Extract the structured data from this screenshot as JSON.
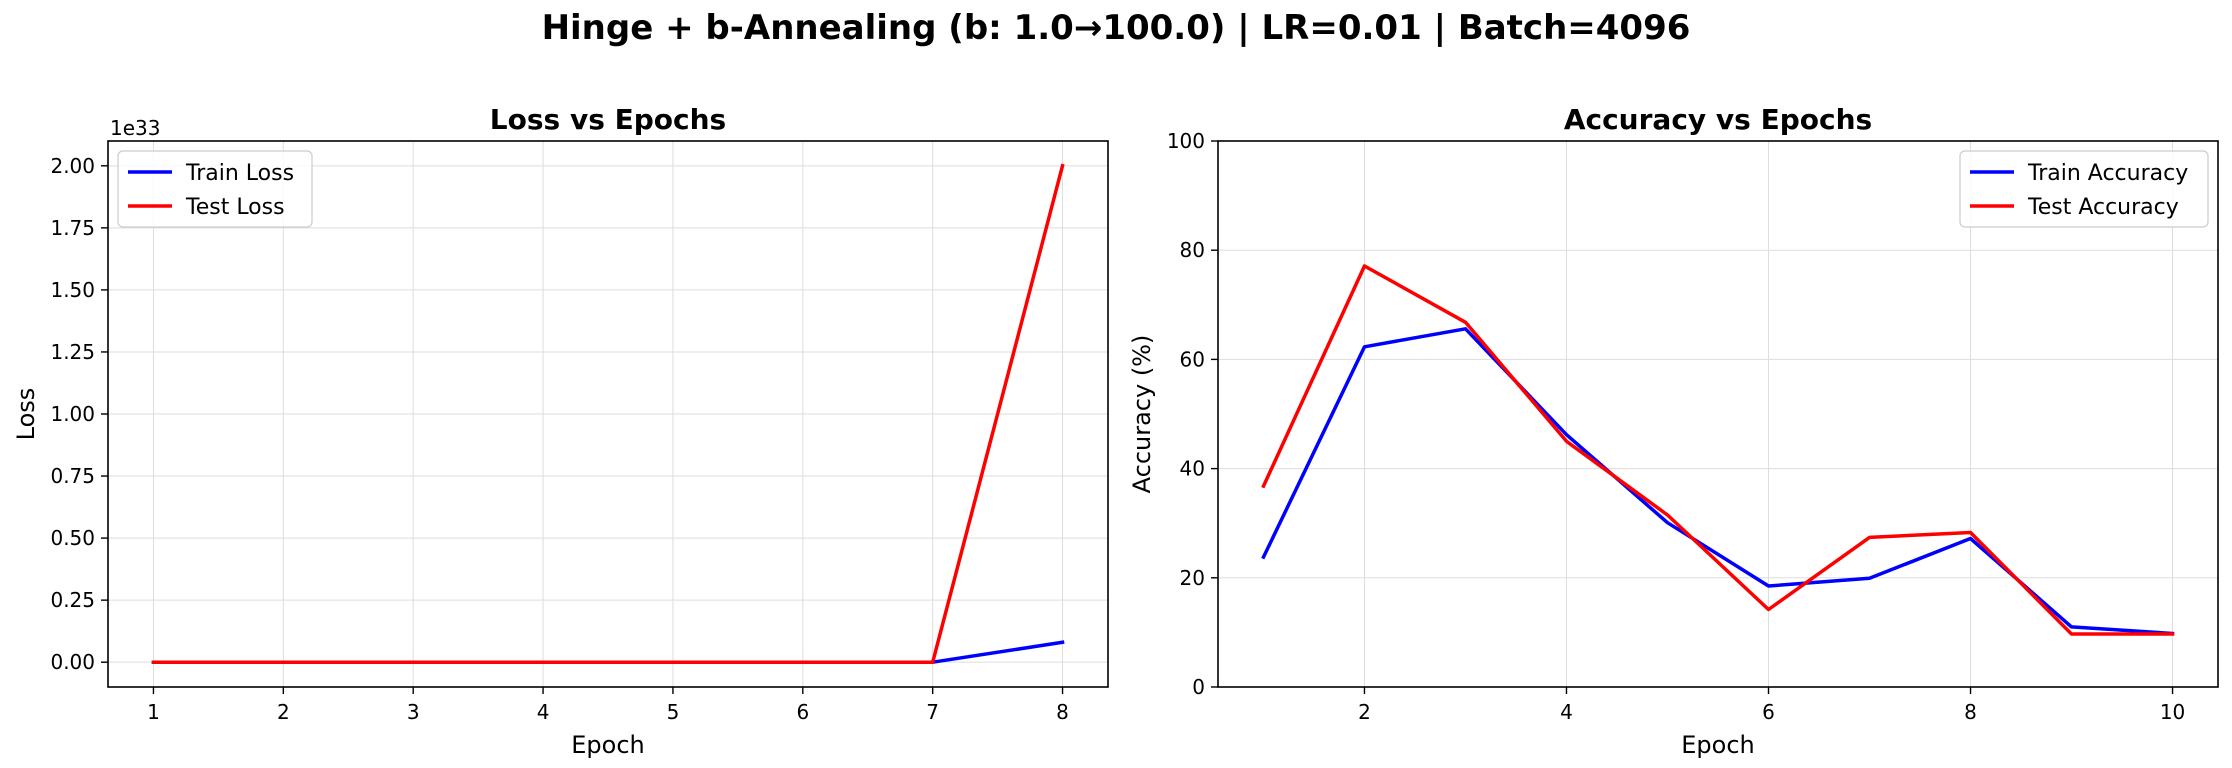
{
  "figure": {
    "title": "Hinge + b-Annealing (b: 1.0→100.0) | LR=0.01 | Batch=4096"
  },
  "colors": {
    "train": "#0000ff",
    "test": "#ff0000",
    "grid": "#dddddd",
    "axes": "#000000"
  },
  "chart_data": [
    {
      "type": "line",
      "title": "Loss vs Epochs",
      "xlabel": "Epoch",
      "ylabel": "Loss",
      "offset_text": "1e33",
      "x": [
        1,
        2,
        3,
        4,
        5,
        6,
        7,
        8
      ],
      "xlim": [
        0.65,
        8.35
      ],
      "ylim": [
        -0.1,
        2.1
      ],
      "xticks": [
        1,
        2,
        3,
        4,
        5,
        6,
        7,
        8
      ],
      "yticks": [
        0.0,
        0.25,
        0.5,
        0.75,
        1.0,
        1.25,
        1.5,
        1.75,
        2.0
      ],
      "ytick_labels": [
        "0.00",
        "0.25",
        "0.50",
        "0.75",
        "1.00",
        "1.25",
        "1.50",
        "1.75",
        "2.00"
      ],
      "grid": true,
      "legend_position": "upper left",
      "series": [
        {
          "name": "Train Loss",
          "color": "#0000ff",
          "values": [
            0,
            0,
            0,
            0,
            0,
            0,
            0,
            0.08
          ]
        },
        {
          "name": "Test Loss",
          "color": "#ff0000",
          "values": [
            0,
            0,
            0,
            0,
            0,
            0,
            0,
            2.0
          ]
        }
      ]
    },
    {
      "type": "line",
      "title": "Accuracy vs Epochs",
      "xlabel": "Epoch",
      "ylabel": "Accuracy (%)",
      "x": [
        1,
        2,
        3,
        4,
        5,
        6,
        7,
        8,
        9,
        10
      ],
      "xlim": [
        0.55,
        10.45
      ],
      "ylim": [
        0,
        100
      ],
      "xticks": [
        2,
        4,
        6,
        8,
        10
      ],
      "yticks": [
        0,
        20,
        40,
        60,
        80,
        100
      ],
      "ytick_labels": [
        "0",
        "20",
        "40",
        "60",
        "80",
        "100"
      ],
      "grid": true,
      "legend_position": "upper right",
      "series": [
        {
          "name": "Train Accuracy",
          "color": "#0000ff",
          "values": [
            23.8,
            62.3,
            65.6,
            46.2,
            30.1,
            18.5,
            19.9,
            27.2,
            11.0,
            9.8
          ]
        },
        {
          "name": "Test Accuracy",
          "color": "#ff0000",
          "values": [
            36.8,
            77.1,
            66.8,
            45.0,
            31.5,
            14.2,
            27.4,
            28.3,
            9.7,
            9.7
          ]
        }
      ]
    }
  ]
}
